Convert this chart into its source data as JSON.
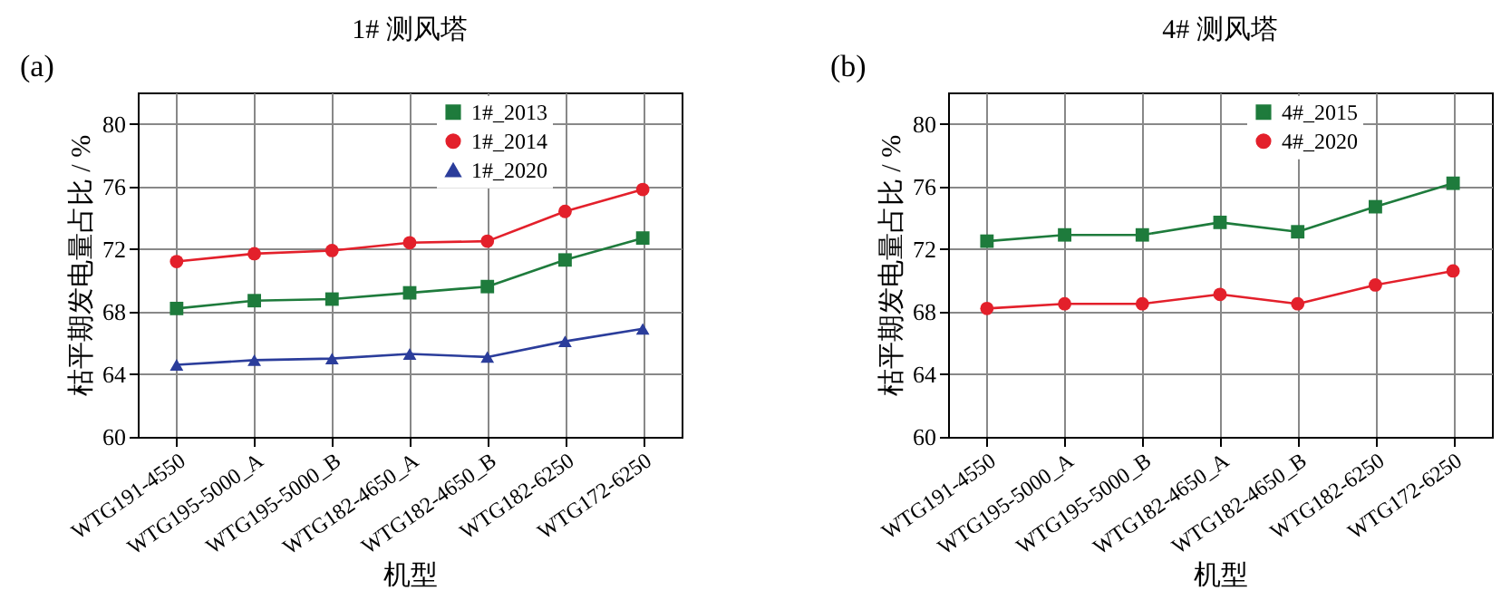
{
  "chart_data": [
    {
      "type": "line",
      "title": "1#  测风塔",
      "annotations": [
        "(a)"
      ],
      "xlabel": "机型",
      "ylabel": "枯平期发电量占比 / %",
      "categories": [
        "WTG191-4550",
        "WTG195-5000_A",
        "WTG195-5000_B",
        "WTG182-4650_A",
        "WTG182-4650_B",
        "WTG182-6250",
        "WTG172-6250"
      ],
      "series": [
        {
          "name": "1#_2013",
          "color": "#1e7b3c",
          "marker": "square",
          "values": [
            68.2,
            68.7,
            68.8,
            69.2,
            69.6,
            71.3,
            72.7
          ]
        },
        {
          "name": "1#_2014",
          "color": "#e3202b",
          "marker": "circle",
          "values": [
            71.2,
            71.7,
            71.9,
            72.4,
            72.5,
            74.4,
            75.8
          ]
        },
        {
          "name": "1#_2020",
          "color": "#2b3d9b",
          "marker": "triangle",
          "values": [
            64.6,
            64.9,
            65.0,
            65.3,
            65.1,
            66.1,
            66.9
          ]
        }
      ],
      "ylim": [
        60,
        82
      ],
      "yticks": [
        60,
        64,
        68,
        72,
        76,
        80
      ],
      "grid": true,
      "legend": "top right"
    },
    {
      "type": "line",
      "title": "4#  测风塔",
      "annotations": [
        "(b)"
      ],
      "xlabel": "机型",
      "ylabel": "枯平期发电量占比 / %",
      "categories": [
        "WTG191-4550",
        "WTG195-5000_A",
        "WTG195-5000_B",
        "WTG182-4650_A",
        "WTG182-4650_B",
        "WTG182-6250",
        "WTG172-6250"
      ],
      "series": [
        {
          "name": "4#_2015",
          "color": "#1e7b3c",
          "marker": "square",
          "values": [
            72.5,
            72.9,
            72.9,
            73.7,
            73.1,
            74.7,
            76.2
          ]
        },
        {
          "name": "4#_2020",
          "color": "#e3202b",
          "marker": "circle",
          "values": [
            68.2,
            68.5,
            68.5,
            69.1,
            68.5,
            69.7,
            70.6
          ]
        }
      ],
      "ylim": [
        60,
        82
      ],
      "yticks": [
        60,
        64,
        68,
        72,
        76,
        80
      ],
      "grid": true,
      "legend": "top right"
    }
  ]
}
